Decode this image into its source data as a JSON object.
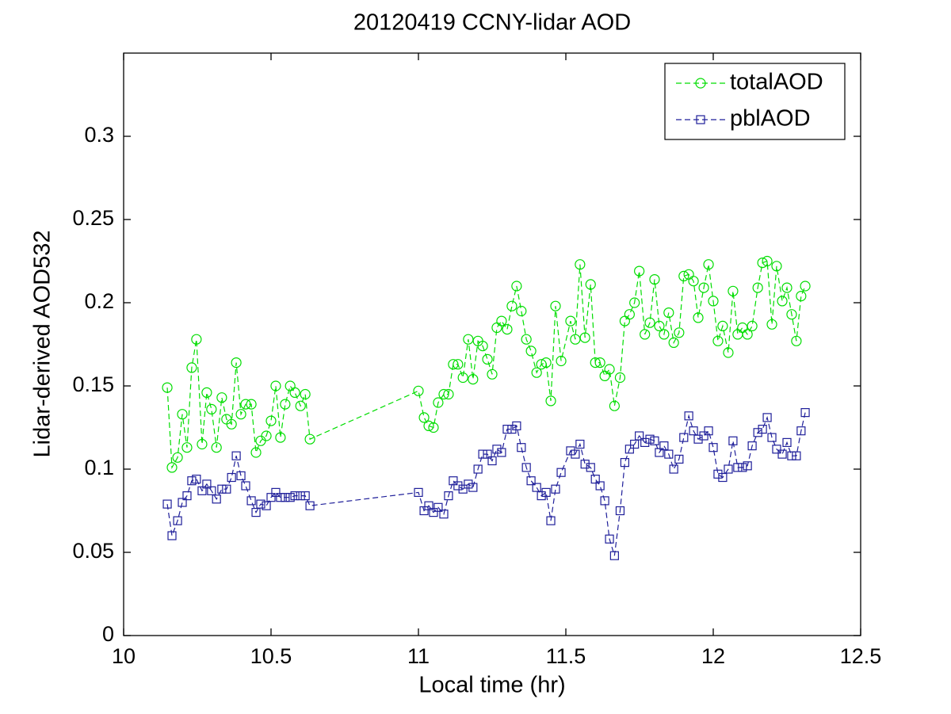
{
  "chart_data": {
    "type": "line",
    "title": "20120419 CCNY-lidar AOD",
    "xlabel": "Local time (hr)",
    "ylabel": "Lidar-derived AOD532",
    "x": [
      10.148,
      10.164,
      10.183,
      10.199,
      10.215,
      10.231,
      10.247,
      10.266,
      10.282,
      10.298,
      10.315,
      10.333,
      10.349,
      10.366,
      10.382,
      10.398,
      10.414,
      10.433,
      10.449,
      10.465,
      10.484,
      10.5,
      10.516,
      10.532,
      10.548,
      10.565,
      10.581,
      10.6,
      10.616,
      10.632,
      11.0,
      11.019,
      11.035,
      11.051,
      11.067,
      11.086,
      11.102,
      11.118,
      11.134,
      11.151,
      11.169,
      11.185,
      11.202,
      11.218,
      11.234,
      11.25,
      11.266,
      11.282,
      11.301,
      11.317,
      11.333,
      11.349,
      11.366,
      11.382,
      11.401,
      11.417,
      11.433,
      11.449,
      11.465,
      11.484,
      11.516,
      11.532,
      11.548,
      11.565,
      11.584,
      11.6,
      11.616,
      11.632,
      11.648,
      11.665,
      11.684,
      11.7,
      11.716,
      11.733,
      11.749,
      11.768,
      11.785,
      11.801,
      11.817,
      11.833,
      11.849,
      11.866,
      11.884,
      11.9,
      11.917,
      11.933,
      11.949,
      11.968,
      11.984,
      12.0,
      12.016,
      12.032,
      12.051,
      12.067,
      12.083,
      12.099,
      12.116,
      12.132,
      12.151,
      12.167,
      12.183,
      12.199,
      12.215,
      12.234,
      12.25,
      12.266,
      12.282,
      12.298,
      12.312
    ],
    "series": [
      {
        "name": "totalAOD",
        "color": "#00dd00",
        "marker": "circle",
        "values": [
          0.149,
          0.101,
          0.107,
          0.133,
          0.113,
          0.161,
          0.178,
          0.115,
          0.146,
          0.136,
          0.113,
          0.143,
          0.13,
          0.127,
          0.164,
          0.133,
          0.139,
          0.139,
          0.11,
          0.117,
          0.12,
          0.129,
          0.15,
          0.119,
          0.139,
          0.15,
          0.146,
          0.138,
          0.145,
          0.118,
          0.147,
          0.131,
          0.126,
          0.125,
          0.14,
          0.145,
          0.145,
          0.163,
          0.163,
          0.155,
          0.178,
          0.154,
          0.177,
          0.174,
          0.166,
          0.157,
          0.185,
          0.189,
          0.184,
          0.198,
          0.21,
          0.195,
          0.178,
          0.171,
          0.158,
          0.163,
          0.164,
          0.141,
          0.198,
          0.165,
          0.189,
          0.178,
          0.223,
          0.179,
          0.211,
          0.164,
          0.164,
          0.156,
          0.16,
          0.138,
          0.155,
          0.189,
          0.193,
          0.2,
          0.219,
          0.181,
          0.188,
          0.214,
          0.186,
          0.181,
          0.194,
          0.176,
          0.182,
          0.216,
          0.217,
          0.213,
          0.191,
          0.209,
          0.223,
          0.201,
          0.177,
          0.186,
          0.17,
          0.207,
          0.181,
          0.185,
          0.181,
          0.186,
          0.209,
          0.224,
          0.225,
          0.187,
          0.222,
          0.201,
          0.209,
          0.193,
          0.177,
          0.204,
          0.21
        ]
      },
      {
        "name": "pblAOD",
        "color": "#1f1f9a",
        "marker": "square",
        "values": [
          0.079,
          0.06,
          0.069,
          0.08,
          0.084,
          0.093,
          0.094,
          0.087,
          0.091,
          0.087,
          0.082,
          0.088,
          0.088,
          0.095,
          0.108,
          0.096,
          0.09,
          0.081,
          0.074,
          0.079,
          0.078,
          0.083,
          0.086,
          0.083,
          0.083,
          0.083,
          0.084,
          0.084,
          0.084,
          0.078,
          0.086,
          0.075,
          0.078,
          0.074,
          0.077,
          0.073,
          0.084,
          0.093,
          0.09,
          0.088,
          0.091,
          0.089,
          0.1,
          0.109,
          0.109,
          0.105,
          0.112,
          0.11,
          0.124,
          0.124,
          0.126,
          0.113,
          0.101,
          0.093,
          0.089,
          0.084,
          0.086,
          0.069,
          0.088,
          0.098,
          0.111,
          0.109,
          0.115,
          0.103,
          0.101,
          0.094,
          0.09,
          0.081,
          0.058,
          0.048,
          0.075,
          0.104,
          0.112,
          0.115,
          0.12,
          0.116,
          0.118,
          0.117,
          0.11,
          0.114,
          0.109,
          0.1,
          0.106,
          0.119,
          0.132,
          0.123,
          0.118,
          0.12,
          0.123,
          0.113,
          0.097,
          0.095,
          0.1,
          0.117,
          0.101,
          0.101,
          0.102,
          0.114,
          0.122,
          0.124,
          0.131,
          0.119,
          0.112,
          0.109,
          0.116,
          0.108,
          0.108,
          0.123,
          0.134
        ]
      }
    ],
    "xlim": [
      10,
      12.5
    ],
    "xticks": [
      10,
      10.5,
      11,
      11.5,
      12,
      12.5
    ],
    "ylim": [
      0,
      0.35
    ],
    "yticks": [
      0,
      0.05,
      0.1,
      0.15,
      0.2,
      0.25,
      0.3
    ],
    "grid": false,
    "legend": "upper right"
  }
}
